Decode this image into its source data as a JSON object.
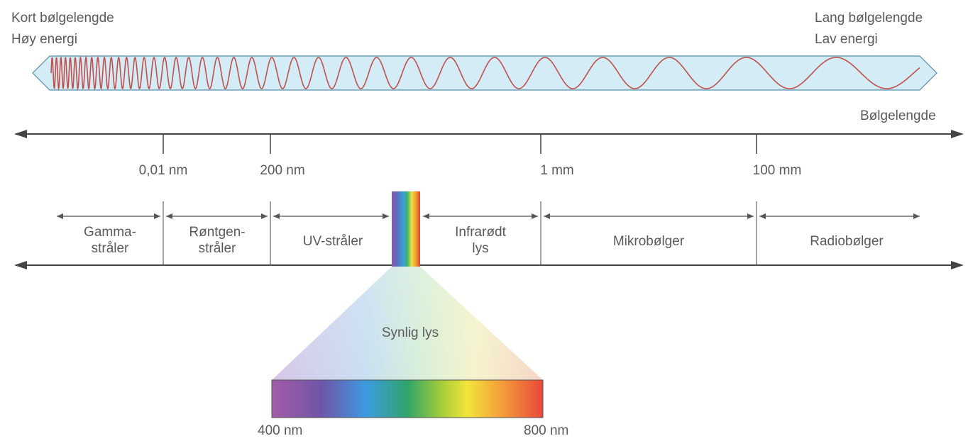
{
  "top_left": {
    "line1": "Kort bølgelengde",
    "line2": "Høy energi"
  },
  "top_right": {
    "line1": "Lang bølgelengde",
    "line2": "Lav energi"
  },
  "axis": {
    "label": "Bølgelengde",
    "ticks": [
      "0,01 nm",
      "200 nm",
      "1 mm",
      "100 mm"
    ]
  },
  "regions": [
    {
      "line1": "Gamma-",
      "line2": "stråler"
    },
    {
      "line1": "Røntgen-",
      "line2": "stråler"
    },
    {
      "line1": "UV-stråler",
      "line2": ""
    },
    {
      "line1": "Infrarødt",
      "line2": "lys"
    },
    {
      "line1": "Mikrobølger",
      "line2": ""
    },
    {
      "line1": "Radiobølger",
      "line2": ""
    }
  ],
  "visible": {
    "label": "Synlig lys",
    "min_label": "400 nm",
    "max_label": "800 nm"
  },
  "colors": {
    "band_fill": "#d3ecf5",
    "wave": "#c0504d",
    "axis": "#444444"
  }
}
